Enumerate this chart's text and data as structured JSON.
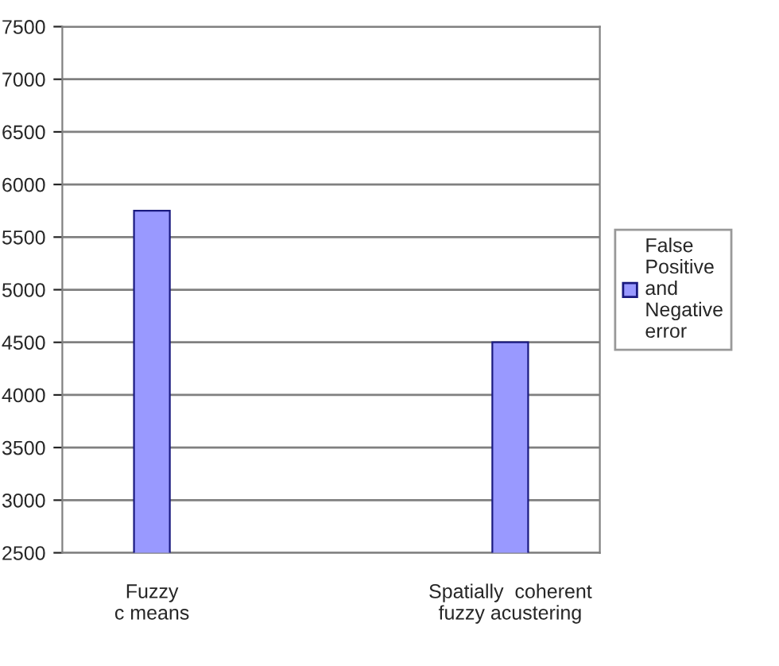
{
  "chart_data": {
    "type": "bar",
    "categories": [
      "Fuzzy\nc means",
      null,
      "Spatially  coherent\nfuzzy acustering"
    ],
    "series": [
      {
        "name": "False\nPositive\nand\nNegative\nerror",
        "color": "#9999ff",
        "values": [
          5750,
          null,
          4500
        ]
      }
    ],
    "ylim": [
      2500,
      7500
    ],
    "yticks": [
      2500,
      3000,
      3500,
      4000,
      4500,
      5000,
      5500,
      6000,
      6500,
      7000,
      7500
    ],
    "grid": "y",
    "legend": "right"
  }
}
